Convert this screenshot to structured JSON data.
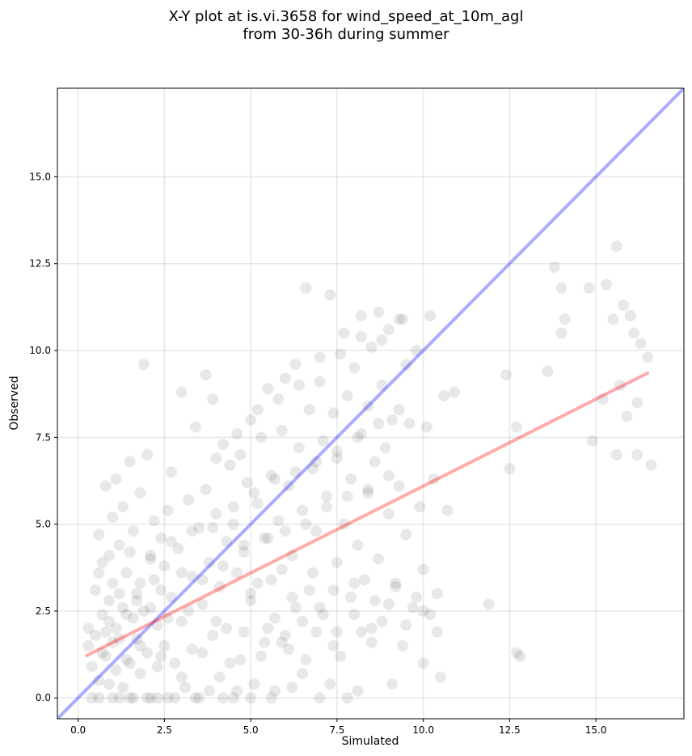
{
  "chart_data": {
    "type": "scatter",
    "title": "X-Y plot at is.vi.3658 for wind_speed_at_10m_agl",
    "subtitle": "from 30-36h during summer",
    "xlabel": "Simulated",
    "ylabel": "Observed",
    "xlim": [
      -0.6,
      17.55
    ],
    "ylim": [
      -0.6,
      17.55
    ],
    "xticks": [
      "0.0",
      "2.5",
      "5.0",
      "7.5",
      "10.0",
      "12.5",
      "15.0"
    ],
    "yticks": [
      "0.0",
      "2.5",
      "5.0",
      "7.5",
      "10.0",
      "12.5",
      "15.0"
    ],
    "grid": true,
    "lines": [
      {
        "role": "1:1 reference",
        "color": "#0000ff",
        "x": [
          -0.6,
          17.55
        ],
        "y": [
          -0.6,
          17.55
        ]
      },
      {
        "role": "regression fit",
        "color": "#ff0000",
        "x": [
          0.25,
          16.5
        ],
        "y": [
          1.22,
          9.35
        ]
      }
    ],
    "marker_color": "#000000",
    "points": [
      [
        0.3,
        1.5
      ],
      [
        0.3,
        2.0
      ],
      [
        0.4,
        0.9
      ],
      [
        0.5,
        3.1
      ],
      [
        0.5,
        1.8
      ],
      [
        0.6,
        4.7
      ],
      [
        0.6,
        0.0
      ],
      [
        0.7,
        2.4
      ],
      [
        0.7,
        3.9
      ],
      [
        0.8,
        1.2
      ],
      [
        0.8,
        6.1
      ],
      [
        0.9,
        2.8
      ],
      [
        0.9,
        0.4
      ],
      [
        1.0,
        5.2
      ],
      [
        1.0,
        3.3
      ],
      [
        1.0,
        1.6
      ],
      [
        1.1,
        6.3
      ],
      [
        1.1,
        2.0
      ],
      [
        1.2,
        0.0
      ],
      [
        1.2,
        4.4
      ],
      [
        1.3,
        2.6
      ],
      [
        1.3,
        5.5
      ],
      [
        1.4,
        1.1
      ],
      [
        1.4,
        3.6
      ],
      [
        1.5,
        0.0
      ],
      [
        1.5,
        6.8
      ],
      [
        1.6,
        2.3
      ],
      [
        1.6,
        4.8
      ],
      [
        1.7,
        1.7
      ],
      [
        1.7,
        3.0
      ],
      [
        1.8,
        0.7
      ],
      [
        1.8,
        5.9
      ],
      [
        1.9,
        9.6
      ],
      [
        1.9,
        2.5
      ],
      [
        2.0,
        7.0
      ],
      [
        2.0,
        1.3
      ],
      [
        2.1,
        4.1
      ],
      [
        2.1,
        0.0
      ],
      [
        2.2,
        3.4
      ],
      [
        2.2,
        5.1
      ],
      [
        2.3,
        2.1
      ],
      [
        2.3,
        0.9
      ],
      [
        2.4,
        4.6
      ],
      [
        2.5,
        3.8
      ],
      [
        2.5,
        1.5
      ],
      [
        2.6,
        0.0
      ],
      [
        2.6,
        5.4
      ],
      [
        2.7,
        2.9
      ],
      [
        2.7,
        6.5
      ],
      [
        2.8,
        1.0
      ],
      [
        2.9,
        4.3
      ],
      [
        3.0,
        8.8
      ],
      [
        3.0,
        2.2
      ],
      [
        3.1,
        0.3
      ],
      [
        3.2,
        5.7
      ],
      [
        3.3,
        3.5
      ],
      [
        3.3,
        1.4
      ],
      [
        3.4,
        7.8
      ],
      [
        3.5,
        4.9
      ],
      [
        3.5,
        0.0
      ],
      [
        3.6,
        2.7
      ],
      [
        3.7,
        9.3
      ],
      [
        3.7,
        6.0
      ],
      [
        3.8,
        3.9
      ],
      [
        3.9,
        1.8
      ],
      [
        3.9,
        8.6
      ],
      [
        4.0,
        5.3
      ],
      [
        4.1,
        0.6
      ],
      [
        4.1,
        3.2
      ],
      [
        4.2,
        7.3
      ],
      [
        4.3,
        4.5
      ],
      [
        4.3,
        2.0
      ],
      [
        4.4,
        6.7
      ],
      [
        4.5,
        0.0
      ],
      [
        4.5,
        5.0
      ],
      [
        4.6,
        3.6
      ],
      [
        4.7,
        1.1
      ],
      [
        4.7,
        7.0
      ],
      [
        4.8,
        4.2
      ],
      [
        4.9,
        6.2
      ],
      [
        5.0,
        2.8
      ],
      [
        5.0,
        8.0
      ],
      [
        5.1,
        0.4
      ],
      [
        5.2,
        5.6
      ],
      [
        5.2,
        3.3
      ],
      [
        5.3,
        7.5
      ],
      [
        5.4,
        1.6
      ],
      [
        5.5,
        4.6
      ],
      [
        5.5,
        8.9
      ],
      [
        5.6,
        6.4
      ],
      [
        5.7,
        2.3
      ],
      [
        5.7,
        0.2
      ],
      [
        5.8,
        5.1
      ],
      [
        5.9,
        7.7
      ],
      [
        5.9,
        3.7
      ],
      [
        6.0,
        9.2
      ],
      [
        6.1,
        1.4
      ],
      [
        6.1,
        6.1
      ],
      [
        6.2,
        4.1
      ],
      [
        6.3,
        9.6
      ],
      [
        6.3,
        2.6
      ],
      [
        6.4,
        7.2
      ],
      [
        6.5,
        0.7
      ],
      [
        6.5,
        5.4
      ],
      [
        6.6,
        11.8
      ],
      [
        6.7,
        3.1
      ],
      [
        6.7,
        8.3
      ],
      [
        6.8,
        6.6
      ],
      [
        6.9,
        1.9
      ],
      [
        6.9,
        4.8
      ],
      [
        7.0,
        9.8
      ],
      [
        7.1,
        7.4
      ],
      [
        7.1,
        2.4
      ],
      [
        7.2,
        5.8
      ],
      [
        7.3,
        11.6
      ],
      [
        7.3,
        0.4
      ],
      [
        7.4,
        8.2
      ],
      [
        7.5,
        3.9
      ],
      [
        7.5,
        6.9
      ],
      [
        7.6,
        1.2
      ],
      [
        7.7,
        10.5
      ],
      [
        7.7,
        5.0
      ],
      [
        7.8,
        8.7
      ],
      [
        7.9,
        2.9
      ],
      [
        7.9,
        6.3
      ],
      [
        8.0,
        9.5
      ],
      [
        8.1,
        4.4
      ],
      [
        8.1,
        0.2
      ],
      [
        8.2,
        7.6
      ],
      [
        8.2,
        11.0
      ],
      [
        8.3,
        3.4
      ],
      [
        8.4,
        5.9
      ],
      [
        8.4,
        8.4
      ],
      [
        8.5,
        1.6
      ],
      [
        8.5,
        10.1
      ],
      [
        8.6,
        6.8
      ],
      [
        8.7,
        4.0
      ],
      [
        8.7,
        11.1
      ],
      [
        8.8,
        2.2
      ],
      [
        8.8,
        9.0
      ],
      [
        8.9,
        7.2
      ],
      [
        9.0,
        5.3
      ],
      [
        9.0,
        10.6
      ],
      [
        9.1,
        0.4
      ],
      [
        9.1,
        8.0
      ],
      [
        9.2,
        3.3
      ],
      [
        9.3,
        10.9
      ],
      [
        9.3,
        6.1
      ],
      [
        9.4,
        1.5
      ],
      [
        9.5,
        9.6
      ],
      [
        9.5,
        4.7
      ],
      [
        9.6,
        7.9
      ],
      [
        9.7,
        2.6
      ],
      [
        9.8,
        10.0
      ],
      [
        9.9,
        5.5
      ],
      [
        10.0,
        3.7
      ],
      [
        10.0,
        1.0
      ],
      [
        10.1,
        7.8
      ],
      [
        10.2,
        11.0
      ],
      [
        10.2,
        2.4
      ],
      [
        10.3,
        6.3
      ],
      [
        10.4,
        1.9
      ],
      [
        10.5,
        0.6
      ],
      [
        10.6,
        8.7
      ],
      [
        10.7,
        5.4
      ],
      [
        10.9,
        8.8
      ],
      [
        11.9,
        2.7
      ],
      [
        12.4,
        9.3
      ],
      [
        12.5,
        6.6
      ],
      [
        12.7,
        1.3
      ],
      [
        12.7,
        7.8
      ],
      [
        12.8,
        1.2
      ],
      [
        13.6,
        9.4
      ],
      [
        13.8,
        12.4
      ],
      [
        14.0,
        11.8
      ],
      [
        14.0,
        10.5
      ],
      [
        14.1,
        10.9
      ],
      [
        14.8,
        11.8
      ],
      [
        14.9,
        7.4
      ],
      [
        15.2,
        8.6
      ],
      [
        15.3,
        11.9
      ],
      [
        15.5,
        10.9
      ],
      [
        15.6,
        7.0
      ],
      [
        15.6,
        13.0
      ],
      [
        15.7,
        9.0
      ],
      [
        15.8,
        11.3
      ],
      [
        15.9,
        8.1
      ],
      [
        16.0,
        11.0
      ],
      [
        16.1,
        10.5
      ],
      [
        16.2,
        7.0
      ],
      [
        16.2,
        8.5
      ],
      [
        16.3,
        10.2
      ],
      [
        16.5,
        9.8
      ],
      [
        16.6,
        6.7
      ],
      [
        0.4,
        0.0
      ],
      [
        0.6,
        0.5
      ],
      [
        0.7,
        1.3
      ],
      [
        0.8,
        1.9
      ],
      [
        0.9,
        2.2
      ],
      [
        1.0,
        0.0
      ],
      [
        1.1,
        0.8
      ],
      [
        1.2,
        1.7
      ],
      [
        1.3,
        0.3
      ],
      [
        1.4,
        2.4
      ],
      [
        1.5,
        1.0
      ],
      [
        1.6,
        0.0
      ],
      [
        1.7,
        2.8
      ],
      [
        1.8,
        1.5
      ],
      [
        2.0,
        0.0
      ],
      [
        2.1,
        2.6
      ],
      [
        2.3,
        0.0
      ],
      [
        2.4,
        1.2
      ],
      [
        2.6,
        2.3
      ],
      [
        2.8,
        0.0
      ],
      [
        3.0,
        0.6
      ],
      [
        3.2,
        2.5
      ],
      [
        3.4,
        0.0
      ],
      [
        3.6,
        1.3
      ],
      [
        3.8,
        0.2
      ],
      [
        4.0,
        2.2
      ],
      [
        4.2,
        0.0
      ],
      [
        4.4,
        1.0
      ],
      [
        4.6,
        0.2
      ],
      [
        4.8,
        1.9
      ],
      [
        5.0,
        0.0
      ],
      [
        5.3,
        1.2
      ],
      [
        5.6,
        0.0
      ],
      [
        5.9,
        1.6
      ],
      [
        6.2,
        0.3
      ],
      [
        6.6,
        1.1
      ],
      [
        7.0,
        0.0
      ],
      [
        7.4,
        1.5
      ],
      [
        7.8,
        0.0
      ],
      [
        8.2,
        1.9
      ],
      [
        0.6,
        3.6
      ],
      [
        0.9,
        4.1
      ],
      [
        1.2,
        3.0
      ],
      [
        1.5,
        4.2
      ],
      [
        1.8,
        3.3
      ],
      [
        2.1,
        4.0
      ],
      [
        2.4,
        3.1
      ],
      [
        2.7,
        4.5
      ],
      [
        3.0,
        3.6
      ],
      [
        3.3,
        4.8
      ],
      [
        3.6,
        3.4
      ],
      [
        3.9,
        4.9
      ],
      [
        4.2,
        3.8
      ],
      [
        4.5,
        5.5
      ],
      [
        4.8,
        4.4
      ],
      [
        5.1,
        5.9
      ],
      [
        5.4,
        4.6
      ],
      [
        5.7,
        6.3
      ],
      [
        6.0,
        4.8
      ],
      [
        6.3,
        6.5
      ],
      [
        6.6,
        5.0
      ],
      [
        6.9,
        6.8
      ],
      [
        7.2,
        5.5
      ],
      [
        7.5,
        7.1
      ],
      [
        7.8,
        5.8
      ],
      [
        8.1,
        7.5
      ],
      [
        8.4,
        6.0
      ],
      [
        8.7,
        7.9
      ],
      [
        9.0,
        6.4
      ],
      [
        9.3,
        8.3
      ],
      [
        4.0,
        6.9
      ],
      [
        4.6,
        7.6
      ],
      [
        5.2,
        8.3
      ],
      [
        5.8,
        8.6
      ],
      [
        6.4,
        9.0
      ],
      [
        7.0,
        9.1
      ],
      [
        7.6,
        9.9
      ],
      [
        8.2,
        10.4
      ],
      [
        8.8,
        10.3
      ],
      [
        9.4,
        10.9
      ],
      [
        5.0,
        3.0
      ],
      [
        5.6,
        3.4
      ],
      [
        6.2,
        2.9
      ],
      [
        6.8,
        3.6
      ],
      [
        7.4,
        3.1
      ],
      [
        8.0,
        3.3
      ],
      [
        8.6,
        2.8
      ],
      [
        9.2,
        3.2
      ],
      [
        9.8,
        2.9
      ],
      [
        10.4,
        3.0
      ],
      [
        5.5,
        2.0
      ],
      [
        6.0,
        1.8
      ],
      [
        6.5,
        2.2
      ],
      [
        7.0,
        2.6
      ],
      [
        7.5,
        1.9
      ],
      [
        8.0,
        2.4
      ],
      [
        8.5,
        2.0
      ],
      [
        9.0,
        2.7
      ],
      [
        9.5,
        2.1
      ],
      [
        10.0,
        2.5
      ]
    ]
  }
}
